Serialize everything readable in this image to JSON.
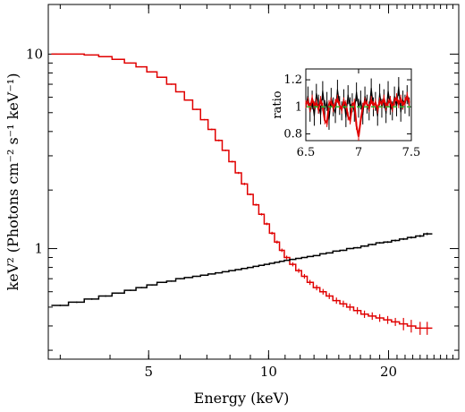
{
  "chart_data": [
    {
      "type": "line",
      "xlabel": "Energy (keV)",
      "ylabel": "keV² (Photons cm⁻² s⁻¹ keV⁻¹)",
      "x_scale": "log",
      "y_scale": "log",
      "xlim": [
        2.8,
        30
      ],
      "ylim": [
        0.27,
        18
      ],
      "x_ticks": [
        5,
        10,
        20
      ],
      "y_ticks": [
        1,
        10
      ],
      "series": [
        {
          "color": "#e00000",
          "style": "step-with-errors",
          "x": [
            3.0,
            3.3,
            3.6,
            3.9,
            4.2,
            4.5,
            4.8,
            5.1,
            5.4,
            5.7,
            6.0,
            6.3,
            6.6,
            6.9,
            7.2,
            7.5,
            7.8,
            8.1,
            8.4,
            8.7,
            9.0,
            9.3,
            9.6,
            9.9,
            10.2,
            10.5,
            10.8,
            11.1,
            11.5,
            11.9,
            12.3,
            12.7,
            13.2,
            13.7,
            14.2,
            14.8,
            15.4,
            16.0,
            16.7,
            17.4,
            18.2,
            19.0,
            19.9,
            20.8,
            21.8,
            22.8,
            24.0,
            25.0
          ],
          "y": [
            10.0,
            10.0,
            9.9,
            9.7,
            9.4,
            9.0,
            8.6,
            8.1,
            7.6,
            7.0,
            6.4,
            5.8,
            5.2,
            4.6,
            4.1,
            3.6,
            3.2,
            2.8,
            2.45,
            2.15,
            1.9,
            1.68,
            1.5,
            1.34,
            1.2,
            1.08,
            0.98,
            0.9,
            0.83,
            0.77,
            0.72,
            0.67,
            0.63,
            0.6,
            0.57,
            0.54,
            0.52,
            0.5,
            0.48,
            0.46,
            0.45,
            0.44,
            0.43,
            0.42,
            0.41,
            0.4,
            0.39,
            0.39
          ],
          "err": [
            0.05,
            0.05,
            0.05,
            0.05,
            0.05,
            0.05,
            0.05,
            0.05,
            0.05,
            0.05,
            0.04,
            0.04,
            0.04,
            0.04,
            0.04,
            0.04,
            0.03,
            0.03,
            0.03,
            0.03,
            0.02,
            0.02,
            0.02,
            0.02,
            0.02,
            0.02,
            0.02,
            0.02,
            0.02,
            0.02,
            0.02,
            0.02,
            0.02,
            0.02,
            0.02,
            0.02,
            0.02,
            0.02,
            0.02,
            0.02,
            0.02,
            0.02,
            0.02,
            0.02,
            0.03,
            0.03,
            0.03,
            0.03
          ]
        },
        {
          "color": "#000000",
          "style": "step-with-errors",
          "x": [
            3.0,
            3.3,
            3.6,
            3.9,
            4.2,
            4.5,
            4.8,
            5.1,
            5.4,
            5.7,
            6.0,
            6.3,
            6.6,
            6.9,
            7.2,
            7.5,
            7.8,
            8.1,
            8.4,
            8.7,
            9.0,
            9.3,
            9.6,
            9.9,
            10.2,
            10.5,
            10.8,
            11.1,
            11.5,
            11.9,
            12.3,
            12.7,
            13.2,
            13.7,
            14.2,
            14.8,
            15.4,
            16.0,
            16.7,
            17.4,
            18.2,
            19.0,
            19.9,
            20.8,
            21.8,
            22.8,
            24.0,
            25.0
          ],
          "y": [
            0.51,
            0.53,
            0.55,
            0.57,
            0.59,
            0.61,
            0.63,
            0.65,
            0.67,
            0.68,
            0.7,
            0.71,
            0.72,
            0.73,
            0.74,
            0.75,
            0.76,
            0.77,
            0.78,
            0.79,
            0.8,
            0.81,
            0.82,
            0.83,
            0.84,
            0.85,
            0.86,
            0.87,
            0.88,
            0.89,
            0.9,
            0.91,
            0.92,
            0.94,
            0.95,
            0.97,
            0.98,
            1.0,
            1.01,
            1.03,
            1.05,
            1.07,
            1.08,
            1.1,
            1.12,
            1.14,
            1.16,
            1.19
          ],
          "err": [
            0.005,
            0.005,
            0.005,
            0.005,
            0.005,
            0.005,
            0.005,
            0.005,
            0.005,
            0.005,
            0.005,
            0.005,
            0.005,
            0.005,
            0.005,
            0.005,
            0.005,
            0.005,
            0.005,
            0.005,
            0.005,
            0.005,
            0.005,
            0.005,
            0.005,
            0.005,
            0.005,
            0.005,
            0.006,
            0.006,
            0.006,
            0.006,
            0.006,
            0.007,
            0.007,
            0.007,
            0.008,
            0.008,
            0.009,
            0.01,
            0.01,
            0.011,
            0.012,
            0.013,
            0.014,
            0.015,
            0.016,
            0.018
          ]
        }
      ]
    },
    {
      "type": "line",
      "ylabel": "ratio",
      "xlim": [
        6.5,
        7.5
      ],
      "ylim": [
        0.75,
        1.28
      ],
      "x_ticks": [
        6.5,
        7,
        7.5
      ],
      "y_ticks": [
        0.8,
        1,
        1.2
      ],
      "reference_line": {
        "y": 1.0,
        "color": "#2fb52f",
        "style": "dashed"
      },
      "series": [
        {
          "color": "#000000",
          "x": [
            6.5,
            6.52,
            6.54,
            6.56,
            6.58,
            6.6,
            6.62,
            6.64,
            6.66,
            6.68,
            6.7,
            6.72,
            6.74,
            6.76,
            6.78,
            6.8,
            6.82,
            6.84,
            6.86,
            6.88,
            6.9,
            6.92,
            6.94,
            6.96,
            6.98,
            7.0,
            7.02,
            7.04,
            7.06,
            7.08,
            7.1,
            7.12,
            7.14,
            7.16,
            7.18,
            7.2,
            7.22,
            7.24,
            7.26,
            7.28,
            7.3,
            7.32,
            7.34,
            7.36,
            7.38,
            7.4,
            7.42,
            7.44,
            7.46,
            7.48
          ],
          "y": [
            1.0,
            1.08,
            0.96,
            1.05,
            0.93,
            1.1,
            1.02,
            0.94,
            1.12,
            0.98,
            1.04,
            0.9,
            1.07,
            1.0,
            0.95,
            1.13,
            1.01,
            0.97,
            1.06,
            0.92,
            1.09,
            1.0,
            1.03,
            0.96,
            1.11,
            0.99,
            1.05,
            0.94,
            1.08,
            1.02,
            0.97,
            1.14,
            1.0,
            1.04,
            0.93,
            1.1,
            0.99,
            1.06,
            0.95,
            1.12,
            1.01,
            0.97,
            1.08,
            1.0,
            1.15,
            0.96,
            1.05,
            1.02,
            1.09,
            1.0
          ],
          "err": [
            0.07,
            0.07,
            0.07,
            0.07,
            0.07,
            0.07,
            0.07,
            0.07,
            0.07,
            0.07,
            0.07,
            0.07,
            0.07,
            0.07,
            0.07,
            0.07,
            0.07,
            0.07,
            0.07,
            0.07,
            0.07,
            0.07,
            0.07,
            0.07,
            0.07,
            0.07,
            0.07,
            0.07,
            0.07,
            0.07,
            0.07,
            0.07,
            0.07,
            0.07,
            0.07,
            0.07,
            0.07,
            0.07,
            0.07,
            0.07,
            0.07,
            0.07,
            0.07,
            0.07,
            0.07,
            0.07,
            0.07,
            0.07,
            0.07,
            0.07
          ]
        },
        {
          "color": "#e00000",
          "x": [
            6.5,
            6.52,
            6.54,
            6.56,
            6.58,
            6.6,
            6.62,
            6.64,
            6.66,
            6.68,
            6.7,
            6.72,
            6.74,
            6.76,
            6.78,
            6.8,
            6.82,
            6.84,
            6.86,
            6.88,
            6.9,
            6.92,
            6.94,
            6.96,
            6.98,
            7.0,
            7.02,
            7.04,
            7.06,
            7.08,
            7.1,
            7.12,
            7.14,
            7.16,
            7.18,
            7.2,
            7.22,
            7.24,
            7.26,
            7.28,
            7.3,
            7.32,
            7.34,
            7.36,
            7.38,
            7.4,
            7.42,
            7.44,
            7.46,
            7.48
          ],
          "y": [
            1.02,
            1.04,
            0.99,
            1.06,
            1.01,
            1.03,
            0.98,
            1.05,
            1.0,
            0.9,
            0.88,
            1.02,
            1.04,
            0.99,
            1.03,
            1.06,
            1.01,
            0.98,
            1.04,
            1.02,
            0.93,
            0.9,
            1.01,
            1.03,
            0.86,
            0.78,
            0.9,
            1.0,
            1.04,
            1.02,
            0.99,
            1.05,
            1.01,
            1.03,
            0.98,
            1.04,
            1.02,
            1.06,
            1.0,
            1.03,
            1.05,
            0.99,
            1.04,
            1.07,
            1.02,
            1.06,
            1.01,
            1.04,
            1.08,
            1.03
          ],
          "err": [
            0.03,
            0.03,
            0.03,
            0.03,
            0.03,
            0.03,
            0.03,
            0.03,
            0.03,
            0.03,
            0.03,
            0.03,
            0.03,
            0.03,
            0.03,
            0.03,
            0.03,
            0.03,
            0.03,
            0.03,
            0.03,
            0.03,
            0.03,
            0.03,
            0.03,
            0.03,
            0.03,
            0.03,
            0.03,
            0.03,
            0.03,
            0.03,
            0.03,
            0.03,
            0.03,
            0.03,
            0.03,
            0.03,
            0.03,
            0.03,
            0.03,
            0.03,
            0.03,
            0.03,
            0.03,
            0.03,
            0.03,
            0.03,
            0.03,
            0.03
          ]
        }
      ]
    }
  ]
}
